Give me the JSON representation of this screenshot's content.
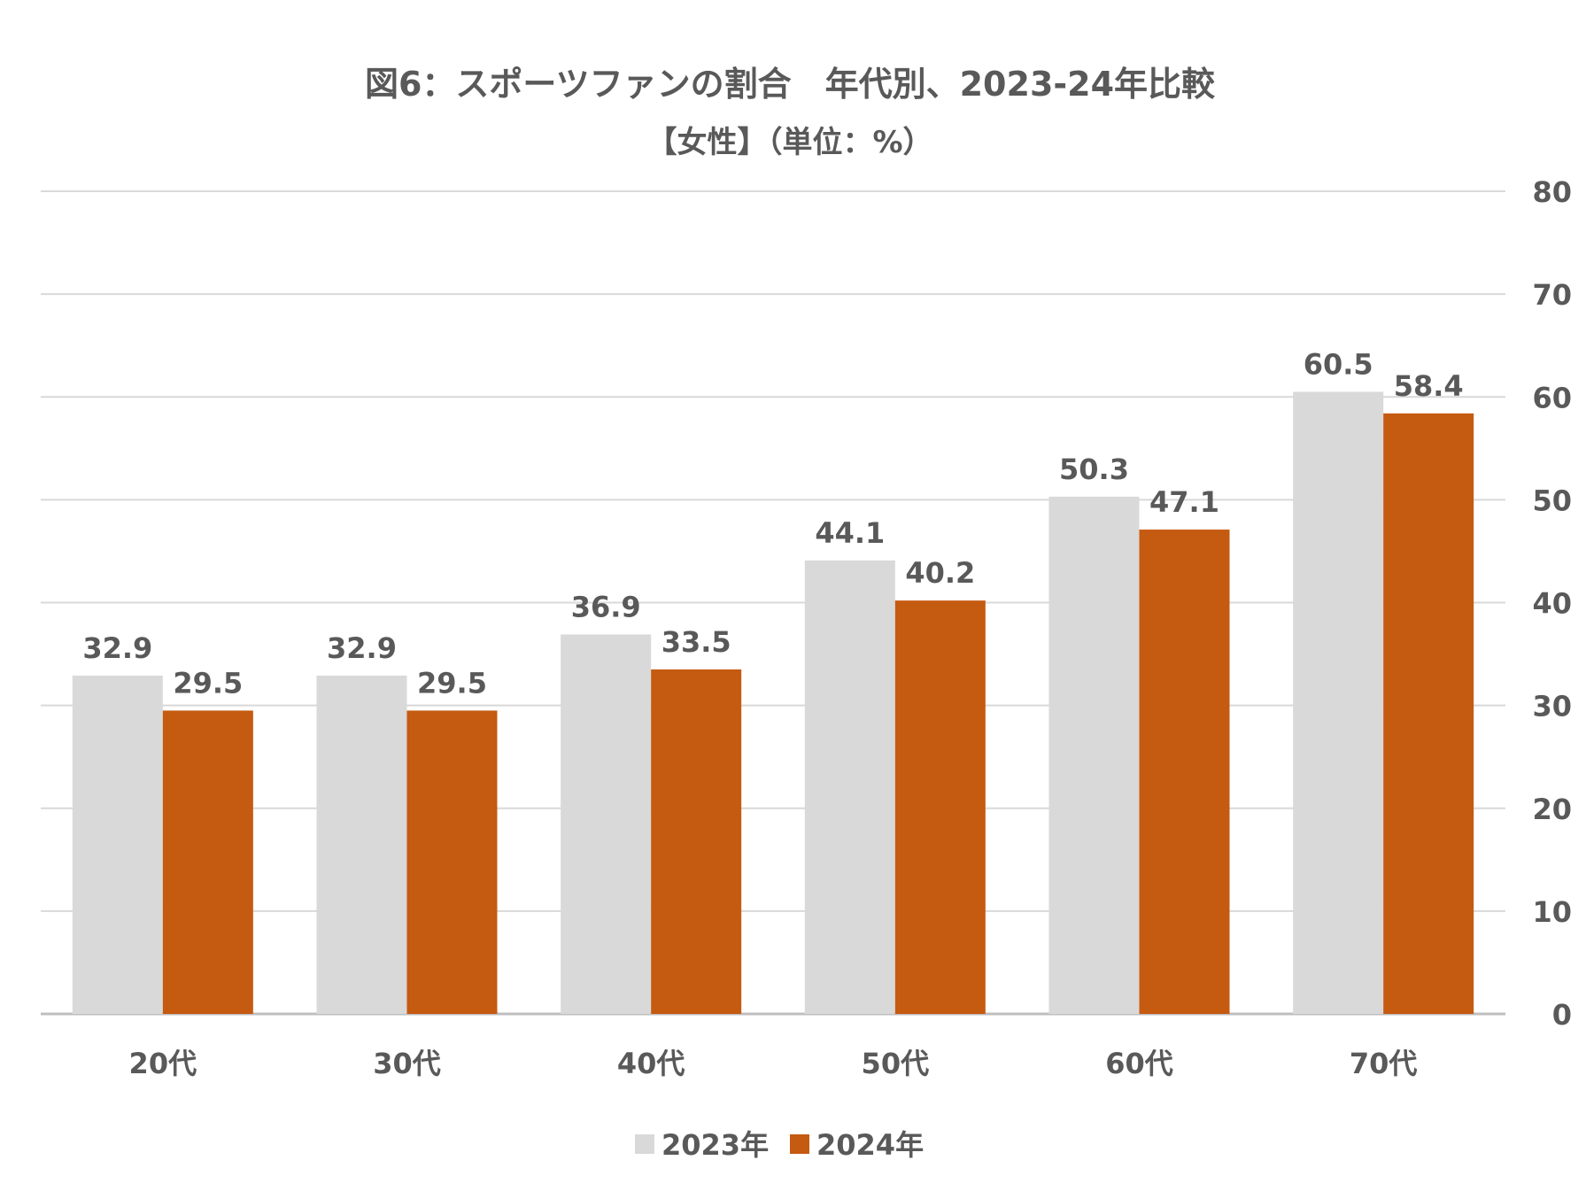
{
  "chart_data": {
    "type": "bar",
    "title": "図6：スポーツファンの割合　年代別、2023-24年比較",
    "subtitle": "【女性】（単位：%）",
    "categories": [
      "20代",
      "30代",
      "40代",
      "50代",
      "60代",
      "70代"
    ],
    "series": [
      {
        "name": "2023年",
        "color": "#d9d9d9",
        "values": [
          32.9,
          32.9,
          36.9,
          44.1,
          50.3,
          60.5
        ]
      },
      {
        "name": "2024年",
        "color": "#c55a11",
        "values": [
          29.5,
          29.5,
          33.5,
          40.2,
          47.1,
          58.4
        ]
      }
    ],
    "ylim": [
      0,
      80
    ],
    "yticks": [
      0,
      10,
      20,
      30,
      40,
      50,
      60,
      70,
      80
    ],
    "y_axis_side": "right",
    "grid": true,
    "data_labels": true,
    "legend_position": "bottom-center"
  }
}
